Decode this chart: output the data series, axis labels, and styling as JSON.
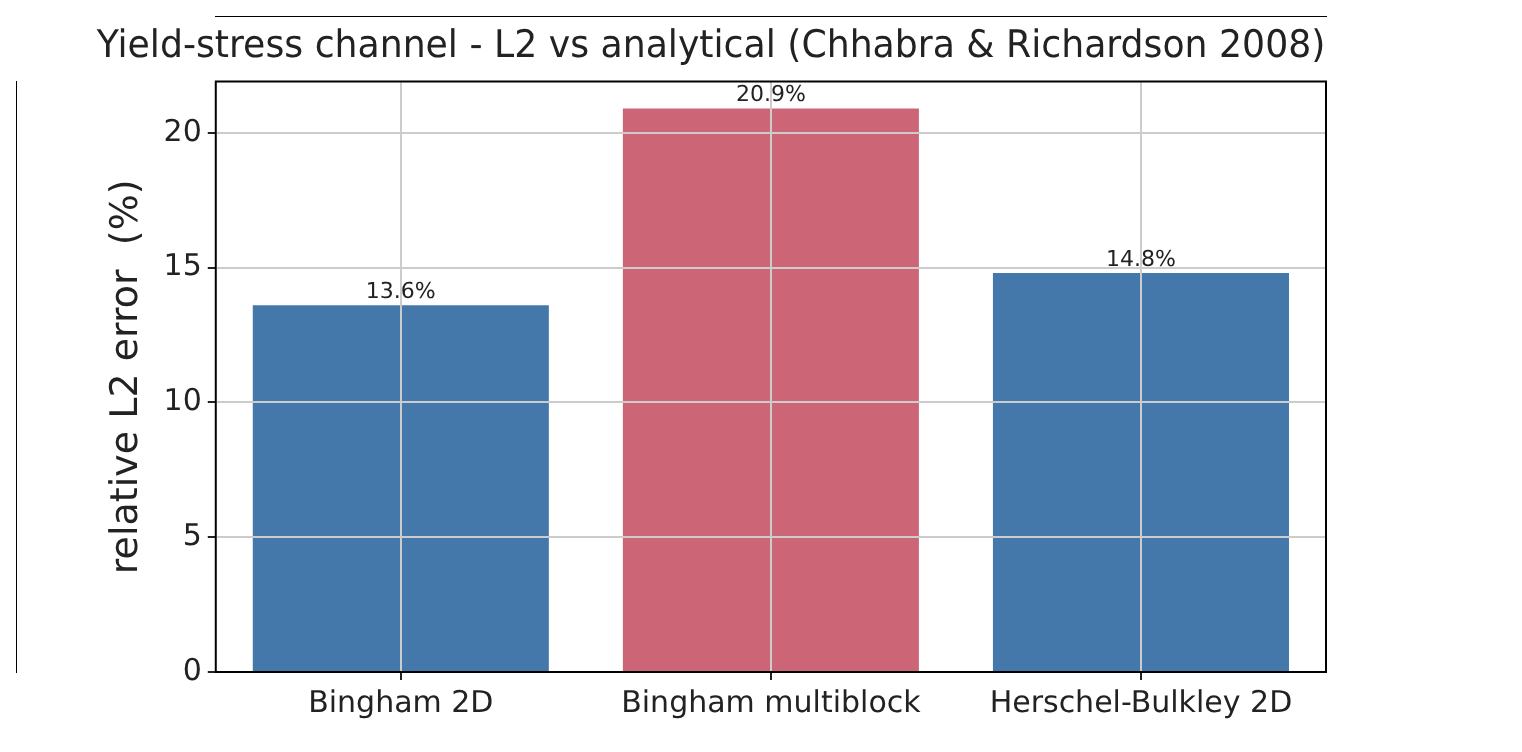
{
  "chart_data": {
    "type": "bar",
    "title": "Yield-stress channel - L2 vs analytical (Chhabra & Richardson 2008)",
    "ylabel": "relative L2 error  (%)",
    "categories": [
      "Bingham 2D",
      "Bingham multiblock",
      "Herschel-Bulkley 2D"
    ],
    "values": [
      13.6,
      20.9,
      14.8
    ],
    "colors": [
      "#4477aa",
      "#cc6677",
      "#4477aa"
    ],
    "value_labels": [
      "13.6%",
      "20.9%",
      "14.8%"
    ],
    "ylim": [
      0,
      21.9
    ],
    "yticks": [
      0,
      5,
      10,
      15,
      20
    ],
    "grid": true
  }
}
